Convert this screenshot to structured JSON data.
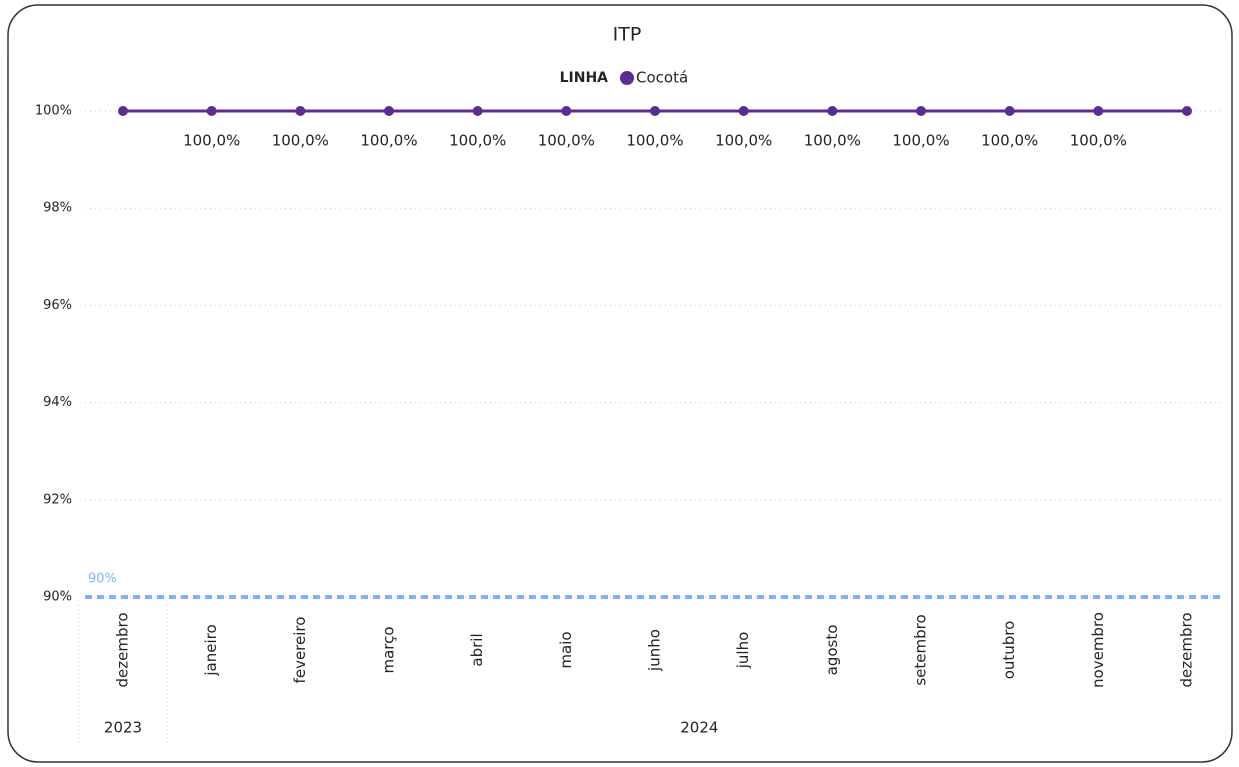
{
  "chart_data": {
    "type": "line",
    "title": "ITP",
    "legend_title": "LINHA",
    "legend": "top",
    "grid": true,
    "categories": [
      "dezembro",
      "janeiro",
      "fevereiro",
      "março",
      "abril",
      "maio",
      "junho",
      "julho",
      "agosto",
      "setembro",
      "outubro",
      "novembro",
      "dezembro"
    ],
    "year_groups": [
      {
        "label": "2023",
        "count": 1
      },
      {
        "label": "2024",
        "count": 12
      }
    ],
    "series": [
      {
        "name": "Cocotá",
        "color": "#5c2d91",
        "values": [
          100,
          100,
          100,
          100,
          100,
          100,
          100,
          100,
          100,
          100,
          100,
          100,
          100
        ],
        "value_labels": [
          null,
          "100,0%",
          "100,0%",
          "100,0%",
          "100,0%",
          "100,0%",
          "100,0%",
          "100,0%",
          "100,0%",
          "100,0%",
          "100,0%",
          "100,0%",
          null
        ]
      }
    ],
    "ylim": [
      90,
      100
    ],
    "yticks": [
      {
        "value": 90,
        "label": "90%"
      },
      {
        "value": 92,
        "label": "92%"
      },
      {
        "value": 94,
        "label": "94%"
      },
      {
        "value": 96,
        "label": "96%"
      },
      {
        "value": 98,
        "label": "98%"
      },
      {
        "value": 100,
        "label": "100%"
      }
    ],
    "reference_line": {
      "value": 90,
      "label": "90%",
      "color": "#7fb2f7"
    }
  }
}
